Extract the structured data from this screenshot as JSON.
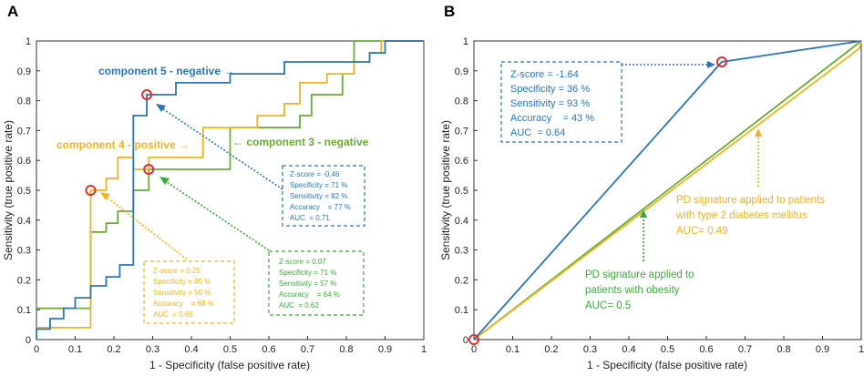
{
  "colors": {
    "blue": "#2e75b6",
    "orange": "#f0b323",
    "green": "#6aaa35",
    "red": "#e03030",
    "green_text": "#3ea83e"
  },
  "chart_data": [
    {
      "type": "line",
      "panel": "A",
      "xlabel": "1 - Specificity (false positive rate)",
      "ylabel": "Sensitivity (true positive rate)",
      "xlim": [
        0,
        1
      ],
      "ylim": [
        0,
        1
      ],
      "xticks": [
        "0",
        "0.1",
        "0.2",
        "0.3",
        "0.4",
        "0.5",
        "0.6",
        "0.7",
        "0.8",
        "0.9",
        "1"
      ],
      "yticks": [
        "0",
        "0.1",
        "0.2",
        "0.3",
        "0.4",
        "0.5",
        "0.6",
        "0.7",
        "0.8",
        "0.9",
        "1"
      ],
      "series": [
        {
          "name": "component 5 - negative",
          "color": "#2e75b6",
          "points": [
            [
              0,
              0
            ],
            [
              0,
              0.035
            ],
            [
              0.035,
              0.035
            ],
            [
              0.035,
              0.07
            ],
            [
              0.07,
              0.07
            ],
            [
              0.07,
              0.105
            ],
            [
              0.1,
              0.105
            ],
            [
              0.1,
              0.14
            ],
            [
              0.14,
              0.14
            ],
            [
              0.14,
              0.18
            ],
            [
              0.18,
              0.18
            ],
            [
              0.18,
              0.21
            ],
            [
              0.215,
              0.21
            ],
            [
              0.215,
              0.25
            ],
            [
              0.25,
              0.25
            ],
            [
              0.25,
              0.75
            ],
            [
              0.285,
              0.75
            ],
            [
              0.285,
              0.82
            ],
            [
              0.36,
              0.82
            ],
            [
              0.36,
              0.86
            ],
            [
              0.5,
              0.86
            ],
            [
              0.5,
              0.89
            ],
            [
              0.64,
              0.89
            ],
            [
              0.64,
              0.93
            ],
            [
              0.86,
              0.93
            ],
            [
              0.86,
              0.96
            ],
            [
              0.9,
              0.96
            ],
            [
              0.9,
              1
            ],
            [
              1,
              1
            ]
          ]
        },
        {
          "name": "component 4 - positive",
          "color": "#f0b323",
          "points": [
            [
              0,
              0.04
            ],
            [
              0.14,
              0.04
            ],
            [
              0.14,
              0.5
            ],
            [
              0.18,
              0.5
            ],
            [
              0.18,
              0.54
            ],
            [
              0.21,
              0.54
            ],
            [
              0.21,
              0.61
            ],
            [
              0.25,
              0.61
            ],
            [
              0.25,
              0.57
            ],
            [
              0.29,
              0.57
            ],
            [
              0.29,
              0.61
            ],
            [
              0.43,
              0.61
            ],
            [
              0.43,
              0.71
            ],
            [
              0.57,
              0.71
            ],
            [
              0.57,
              0.75
            ],
            [
              0.64,
              0.75
            ],
            [
              0.64,
              0.79
            ],
            [
              0.68,
              0.79
            ],
            [
              0.68,
              0.86
            ],
            [
              0.75,
              0.86
            ],
            [
              0.75,
              0.89
            ],
            [
              0.82,
              0.89
            ],
            [
              0.82,
              0.93
            ],
            [
              0.86,
              0.93
            ],
            [
              0.86,
              0.96
            ],
            [
              0.89,
              0.96
            ],
            [
              0.89,
              1
            ],
            [
              1,
              1
            ]
          ]
        },
        {
          "name": "component 3 - negative",
          "color": "#6aaa35",
          "points": [
            [
              0,
              0.105
            ],
            [
              0.14,
              0.105
            ],
            [
              0.14,
              0.36
            ],
            [
              0.18,
              0.36
            ],
            [
              0.18,
              0.39
            ],
            [
              0.21,
              0.39
            ],
            [
              0.21,
              0.43
            ],
            [
              0.25,
              0.43
            ],
            [
              0.25,
              0.5
            ],
            [
              0.29,
              0.5
            ],
            [
              0.29,
              0.57
            ],
            [
              0.5,
              0.57
            ],
            [
              0.5,
              0.71
            ],
            [
              0.68,
              0.71
            ],
            [
              0.68,
              0.75
            ],
            [
              0.71,
              0.75
            ],
            [
              0.71,
              0.82
            ],
            [
              0.79,
              0.82
            ],
            [
              0.79,
              0.89
            ],
            [
              0.82,
              0.89
            ],
            [
              0.82,
              1
            ],
            [
              1,
              1
            ]
          ]
        }
      ],
      "markers": [
        [
          0.285,
          0.82
        ],
        [
          0.14,
          0.5
        ],
        [
          0.29,
          0.57
        ]
      ],
      "series_labels": [
        "component 5 - negative →",
        "component 4 - positive →",
        "← component 3 - negative"
      ],
      "info_boxes": [
        {
          "color": "#2e75b6",
          "lines": [
            "Z-score = -0.46",
            "Specificity = 71 %",
            "Sensitivity = 82 %",
            "Accuracy    = 77 %",
            "AUC  = 0.71"
          ]
        },
        {
          "color": "#f0b323",
          "lines": [
            "Z-score = 0.25",
            "Specificity = 85 %",
            "Sensitivity = 50 %",
            "Accuracy    = 68 %",
            "AUC  = 0.65"
          ]
        },
        {
          "color": "#3ea83e",
          "lines": [
            "Z-score = 0.07",
            "Specificity = 71 %",
            "Sensitivity = 57 %",
            "Accuracy    = 64 %",
            "AUC  = 0.62"
          ]
        }
      ]
    },
    {
      "type": "line",
      "panel": "B",
      "xlabel": "1 - Specificity (false positive rate)",
      "ylabel": "Sensitivity (true positive rate)",
      "xlim": [
        0,
        1
      ],
      "ylim": [
        0,
        1
      ],
      "xticks": [
        "0",
        "0.1",
        "0.2",
        "0.3",
        "0.4",
        "0.5",
        "0.6",
        "0.7",
        "0.8",
        "0.9",
        "1"
      ],
      "yticks": [
        "0",
        "0.1",
        "0.2",
        "0.3",
        "0.4",
        "0.5",
        "0.6",
        "0.7",
        "0.8",
        "0.9",
        "1"
      ],
      "series": [
        {
          "name": "PD signature",
          "color": "#2e75b6",
          "points": [
            [
              0,
              0
            ],
            [
              0.64,
              0.93
            ],
            [
              1,
              1
            ]
          ]
        },
        {
          "name": "PD signature applied to patients with type 2 diabetes mellitus",
          "color": "#f0b323",
          "points": [
            [
              0,
              0
            ],
            [
              0.995,
              0.975
            ],
            [
              1,
              1
            ]
          ]
        },
        {
          "name": "PD signature applied to patients with obesity",
          "color": "#6aaa35",
          "points": [
            [
              0,
              0
            ],
            [
              1,
              1
            ]
          ]
        }
      ],
      "markers": [
        [
          0.64,
          0.93
        ],
        [
          0,
          0
        ]
      ],
      "info_box": {
        "color": "#2e75b6",
        "lines": [
          "Z-score = -1.64",
          "Specificity = 36 %",
          "Sensitivity = 93 %",
          "Accuracy    = 43 %",
          "AUC  = 0.64"
        ]
      },
      "notes": [
        {
          "color": "#f0b323",
          "lines": [
            "PD signature applied to patients",
            "with type 2 diabetes mellitus",
            "AUC= 0.49"
          ]
        },
        {
          "color": "#3ea83e",
          "lines": [
            "PD signature applied to",
            "patients with obesity",
            "AUC= 0.5"
          ]
        }
      ]
    }
  ]
}
